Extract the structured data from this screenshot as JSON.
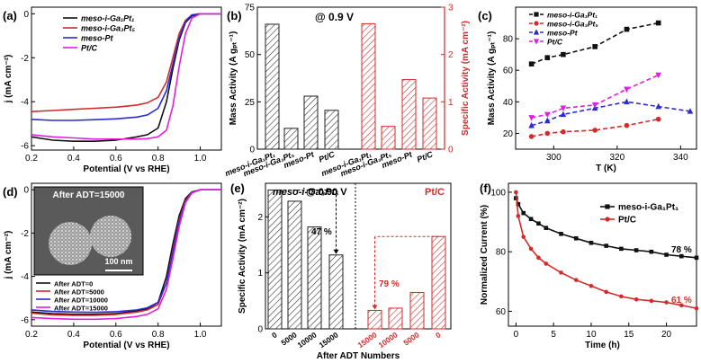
{
  "colors": {
    "black": "#111111",
    "red": "#d42a2a",
    "blue": "#2a2ad6",
    "magenta": "#e020e0",
    "hatch_black": "#333333",
    "hatch_red": "#c83232"
  },
  "chart_data": [
    {
      "id": "a",
      "panel_label": "(a)",
      "type": "line",
      "xlabel": "Potential (V vs RHE)",
      "ylabel": "j (mA cm⁻²)",
      "xlim": [
        0.2,
        1.1
      ],
      "ylim": [
        -6.2,
        0.3
      ],
      "xticks": [
        "0.2",
        "0.4",
        "0.6",
        "0.8",
        "1.0"
      ],
      "yticks": [
        "0",
        "-2",
        "-4",
        "-6"
      ],
      "legend": [
        "meso-i-Ga₁Pt₁",
        "meso-i-Ga₃Pt₅",
        "meso-Pt",
        "Pt/C"
      ],
      "series": [
        {
          "name": "meso-i-Ga₁Pt₁",
          "color": "black",
          "x": [
            0.2,
            0.3,
            0.4,
            0.5,
            0.6,
            0.7,
            0.75,
            0.8,
            0.84,
            0.87,
            0.9,
            0.93,
            0.96,
            1.0,
            1.1
          ],
          "y": [
            -5.6,
            -5.75,
            -5.8,
            -5.8,
            -5.75,
            -5.6,
            -5.5,
            -5.2,
            -4.0,
            -2.5,
            -1.2,
            -0.4,
            -0.1,
            0.0,
            0.0
          ]
        },
        {
          "name": "meso-i-Ga₃Pt₅",
          "color": "red",
          "x": [
            0.2,
            0.3,
            0.4,
            0.5,
            0.6,
            0.7,
            0.75,
            0.8,
            0.84,
            0.87,
            0.9,
            0.93,
            0.96,
            1.0,
            1.1
          ],
          "y": [
            -4.45,
            -4.4,
            -4.35,
            -4.3,
            -4.25,
            -4.15,
            -4.05,
            -3.8,
            -3.1,
            -2.0,
            -0.9,
            -0.3,
            -0.05,
            0.0,
            0.0
          ]
        },
        {
          "name": "meso-Pt",
          "color": "blue",
          "x": [
            0.2,
            0.3,
            0.4,
            0.5,
            0.6,
            0.7,
            0.75,
            0.8,
            0.84,
            0.87,
            0.9,
            0.93,
            0.96,
            1.0,
            1.1
          ],
          "y": [
            -4.8,
            -4.85,
            -4.85,
            -4.82,
            -4.78,
            -4.7,
            -4.6,
            -4.3,
            -3.5,
            -2.3,
            -1.1,
            -0.35,
            -0.05,
            0.0,
            0.0
          ]
        },
        {
          "name": "Pt/C",
          "color": "magenta",
          "x": [
            0.2,
            0.3,
            0.4,
            0.5,
            0.6,
            0.7,
            0.75,
            0.8,
            0.84,
            0.87,
            0.9,
            0.93,
            0.96,
            1.0,
            1.1
          ],
          "y": [
            -5.5,
            -5.6,
            -5.65,
            -5.7,
            -5.7,
            -5.7,
            -5.68,
            -5.6,
            -5.3,
            -4.2,
            -2.4,
            -0.9,
            -0.2,
            0.0,
            0.0
          ]
        }
      ]
    },
    {
      "id": "b",
      "panel_label": "(b)",
      "type": "bar",
      "annotation": "@ 0.9 V",
      "ylabel_left": "Mass Activity (A gₚₜ⁻¹)",
      "ylabel_right": "Specific Activity (mA cm⁻²)",
      "ylim_left": [
        0,
        75
      ],
      "ylim_right": [
        0,
        3
      ],
      "yticks_left": [
        "0",
        "25",
        "50",
        "75"
      ],
      "yticks_right": [
        "0",
        "1",
        "2",
        "3"
      ],
      "mass_activity": {
        "categories": [
          "meso-i-Ga₁Pt₁",
          "meso-i-Ga₃Pt₅",
          "meso-Pt",
          "Pt/C"
        ],
        "values": [
          66,
          11,
          28,
          20.5
        ]
      },
      "specific_activity": {
        "categories": [
          "meso-i-Ga₁Pt₁",
          "meso-i-Ga₃Pt₅",
          "meso-Pt",
          "Pt/C"
        ],
        "values": [
          2.65,
          0.48,
          1.47,
          1.08
        ]
      }
    },
    {
      "id": "c",
      "panel_label": "(c)",
      "type": "line",
      "xlabel": "T (K)",
      "ylabel": "Mass Activity (A gₚₜ⁻¹)",
      "xlim": [
        288,
        345
      ],
      "ylim": [
        10,
        100
      ],
      "xticks": [
        "300",
        "320",
        "340"
      ],
      "yticks": [
        "20",
        "40",
        "60",
        "80"
      ],
      "legend": [
        "meso-i-Ga₁Pt₁",
        "meso-i-Ga₃Pt₅",
        "meso-Pt",
        "Pt/C"
      ],
      "series": [
        {
          "name": "meso-i-Ga₁Pt₁",
          "color": "black",
          "marker": "square",
          "x": [
            293,
            298,
            303,
            313,
            323,
            333
          ],
          "y": [
            64,
            68,
            70,
            75,
            86,
            90
          ]
        },
        {
          "name": "meso-i-Ga₃Pt₅",
          "color": "red",
          "marker": "circle",
          "x": [
            293,
            298,
            303,
            313,
            323,
            333
          ],
          "y": [
            18,
            20,
            21,
            22,
            25,
            29
          ]
        },
        {
          "name": "meso-Pt",
          "color": "blue",
          "marker": "triangle",
          "x": [
            293,
            298,
            303,
            313,
            323,
            333,
            343
          ],
          "y": [
            25,
            28,
            32,
            36,
            40,
            37,
            34
          ]
        },
        {
          "name": "Pt/C",
          "color": "magenta",
          "marker": "triangle-down",
          "x": [
            293,
            298,
            303,
            313,
            323,
            333
          ],
          "y": [
            30,
            32,
            36,
            38,
            48,
            57
          ]
        }
      ]
    },
    {
      "id": "d",
      "panel_label": "(d)",
      "type": "line",
      "xlabel": "Potential (V vs RHE)",
      "ylabel": "j (mA cm⁻²)",
      "xlim": [
        0.2,
        1.1
      ],
      "ylim": [
        -6.3,
        0.3
      ],
      "xticks": [
        "0.2",
        "0.4",
        "0.6",
        "0.8",
        "1.0"
      ],
      "yticks": [
        "0",
        "-2",
        "-4",
        "-6"
      ],
      "inset_label": "After ADT=15000",
      "scale_bar": "100 nm",
      "legend": [
        "After ADT=0",
        "After ADT=5000",
        "After ADT=10000",
        "After ADT=15000"
      ],
      "series": [
        {
          "name": "After ADT=0",
          "color": "black",
          "x": [
            0.2,
            0.3,
            0.4,
            0.5,
            0.6,
            0.7,
            0.75,
            0.8,
            0.84,
            0.87,
            0.9,
            0.93,
            0.96,
            1.0,
            1.1
          ],
          "y": [
            -5.65,
            -5.72,
            -5.75,
            -5.75,
            -5.72,
            -5.6,
            -5.5,
            -5.2,
            -4.0,
            -2.5,
            -1.2,
            -0.4,
            -0.1,
            0.0,
            0.0
          ]
        },
        {
          "name": "After ADT=5000",
          "color": "red",
          "x": [
            0.2,
            0.3,
            0.4,
            0.5,
            0.6,
            0.7,
            0.75,
            0.8,
            0.84,
            0.87,
            0.9,
            0.93,
            0.96,
            1.0,
            1.1
          ],
          "y": [
            -5.7,
            -5.78,
            -5.8,
            -5.8,
            -5.76,
            -5.65,
            -5.55,
            -5.3,
            -4.3,
            -2.8,
            -1.4,
            -0.5,
            -0.12,
            0.0,
            0.0
          ]
        },
        {
          "name": "After ADT=10000",
          "color": "blue",
          "x": [
            0.2,
            0.3,
            0.4,
            0.5,
            0.6,
            0.7,
            0.75,
            0.8,
            0.84,
            0.87,
            0.9,
            0.93,
            0.96,
            1.0,
            1.1
          ],
          "y": [
            -5.55,
            -5.62,
            -5.65,
            -5.66,
            -5.63,
            -5.55,
            -5.45,
            -5.2,
            -4.3,
            -2.9,
            -1.5,
            -0.55,
            -0.13,
            0.0,
            0.0
          ]
        },
        {
          "name": "After ADT=15000",
          "color": "magenta",
          "x": [
            0.2,
            0.3,
            0.4,
            0.5,
            0.6,
            0.7,
            0.75,
            0.8,
            0.84,
            0.87,
            0.9,
            0.93,
            0.96,
            1.0,
            1.1
          ],
          "y": [
            -5.9,
            -5.95,
            -5.98,
            -5.98,
            -5.95,
            -5.85,
            -5.75,
            -5.5,
            -4.6,
            -3.2,
            -1.7,
            -0.6,
            -0.15,
            0.0,
            0.0
          ]
        }
      ]
    },
    {
      "id": "e",
      "panel_label": "(e)",
      "type": "bar",
      "title_left": "meso-i-Ga₃Pt₅",
      "annotation": "@ 0.90 V",
      "title_right": "Pt/C",
      "xlabel": "After ADT Numbers",
      "ylabel": "Specific Activity (mA cm⁻²)",
      "ylim": [
        0,
        2.6
      ],
      "yticks": [
        "0",
        "1",
        "2"
      ],
      "left_group": {
        "categories": [
          "0",
          "5000",
          "10000",
          "15000"
        ],
        "values": [
          2.48,
          2.28,
          1.82,
          1.32
        ],
        "drop_label": "47 %"
      },
      "right_group": {
        "categories": [
          "15000",
          "10000",
          "5000",
          "0"
        ],
        "values": [
          0.33,
          0.37,
          0.65,
          1.65
        ],
        "drop_label": "79 %"
      }
    },
    {
      "id": "f",
      "panel_label": "(f)",
      "type": "line",
      "xlabel": "Time (h)",
      "ylabel": "Normalized Current (%)",
      "xlim": [
        -1,
        24
      ],
      "ylim": [
        55,
        103
      ],
      "xticks": [
        "0",
        "5",
        "10",
        "15",
        "20"
      ],
      "yticks": [
        "60",
        "80",
        "100"
      ],
      "legend": [
        "meso-i-Ga₁Pt₁",
        "Pt/C"
      ],
      "end_labels": [
        "78 %",
        "61 %"
      ],
      "series": [
        {
          "name": "meso-i-Ga₁Pt₁",
          "color": "black",
          "marker": "square",
          "x": [
            0,
            0.3,
            1,
            2,
            3,
            4,
            6,
            8,
            10,
            12,
            14,
            16,
            18,
            20,
            22,
            24
          ],
          "y": [
            98,
            96,
            93,
            91,
            89.5,
            88,
            86,
            84.5,
            83,
            82,
            81,
            80.5,
            80,
            79,
            78.5,
            78
          ]
        },
        {
          "name": "Pt/C",
          "color": "red",
          "marker": "circle",
          "x": [
            0,
            0.3,
            1,
            2,
            3,
            4,
            6,
            8,
            10,
            12,
            14,
            16,
            18,
            20,
            22,
            24
          ],
          "y": [
            100,
            92,
            85,
            81,
            78,
            76,
            73,
            70.5,
            68.5,
            66.5,
            65,
            64,
            63.5,
            63,
            62,
            61
          ]
        }
      ]
    }
  ]
}
